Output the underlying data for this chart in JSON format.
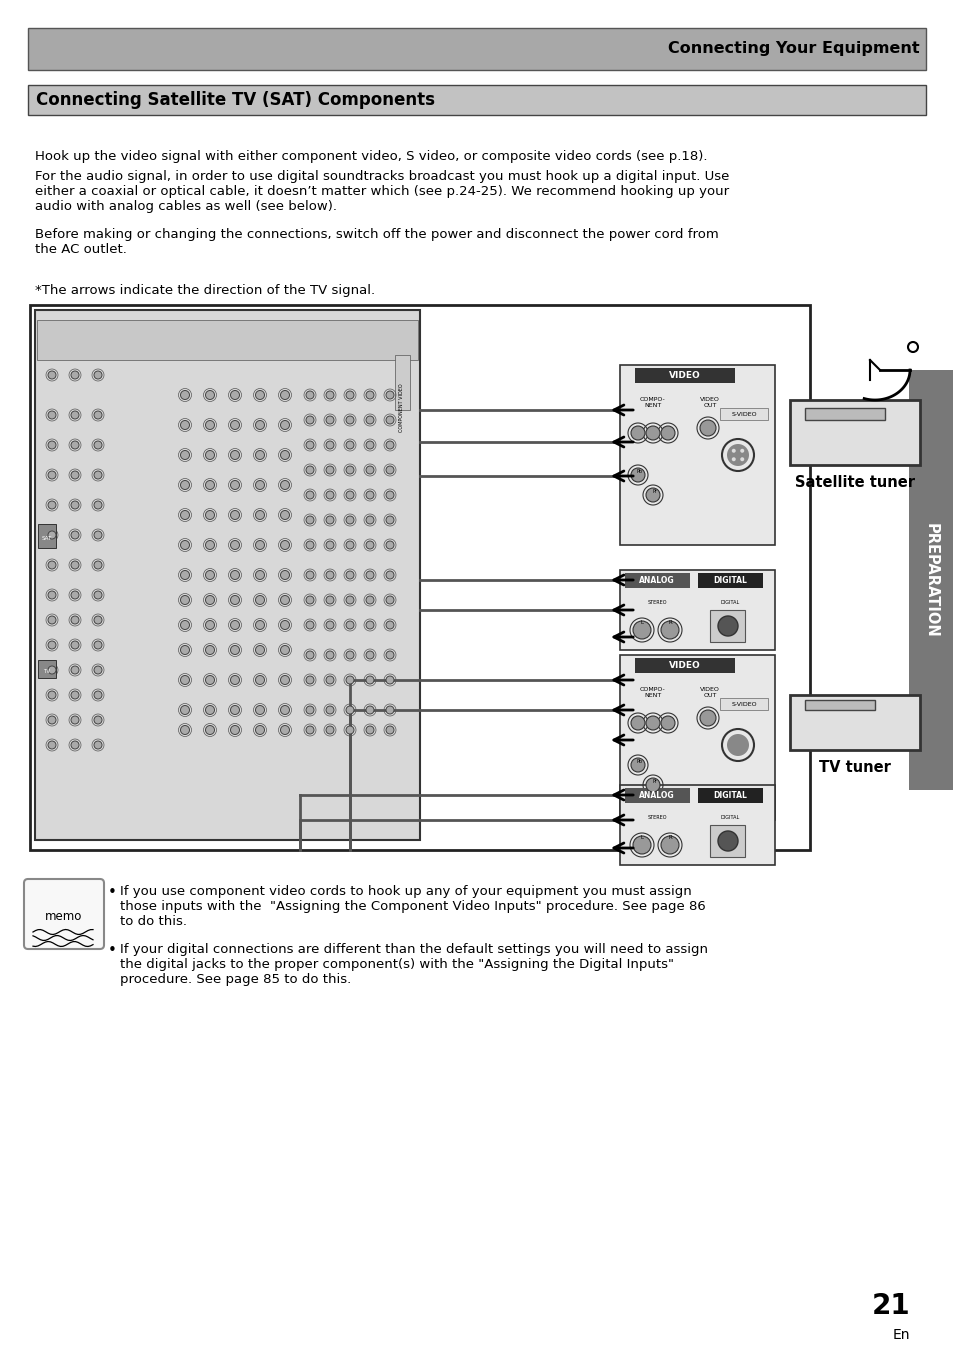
{
  "page_bg": "#ffffff",
  "header_bg": "#a0a0a0",
  "header_text": "Connecting Your Equipment",
  "section_bg": "#c0c0c0",
  "section_title": "Connecting Satellite TV (SAT) Components",
  "body1": "Hook up the video signal with either component video, S video, or composite video cords (see p.18).",
  "body2": "For the audio signal, in order to use digital soundtracks broadcast you must hook up a digital input. Use\neither a coaxial or optical cable, it doesn’t matter which (see p.24-25). We recommend hooking up your\naudio with analog cables as well (see below).",
  "body3": "Before making or changing the connections, switch off the power and disconnect the power cord from\nthe AC outlet.",
  "arrow_note": "*The arrows indicate the direction of the TV signal.",
  "label_sat": "Satellite tuner",
  "label_tv": "TV tuner",
  "sidebar_text": "PREPARATION",
  "memo1": "If you use component video cords to hook up any of your equipment you must assign\nthose inputs with the  \"Assigning the Component Video Inputs\" procedure. See page 86\nto do this.",
  "memo2": "If your digital connections are different than the default settings you will need to assign\nthe digital jacks to the proper component(s) with the \"Assigning the Digital Inputs\"\nprocedure. See page 85 to do this.",
  "page_num": "21",
  "page_en": "En"
}
